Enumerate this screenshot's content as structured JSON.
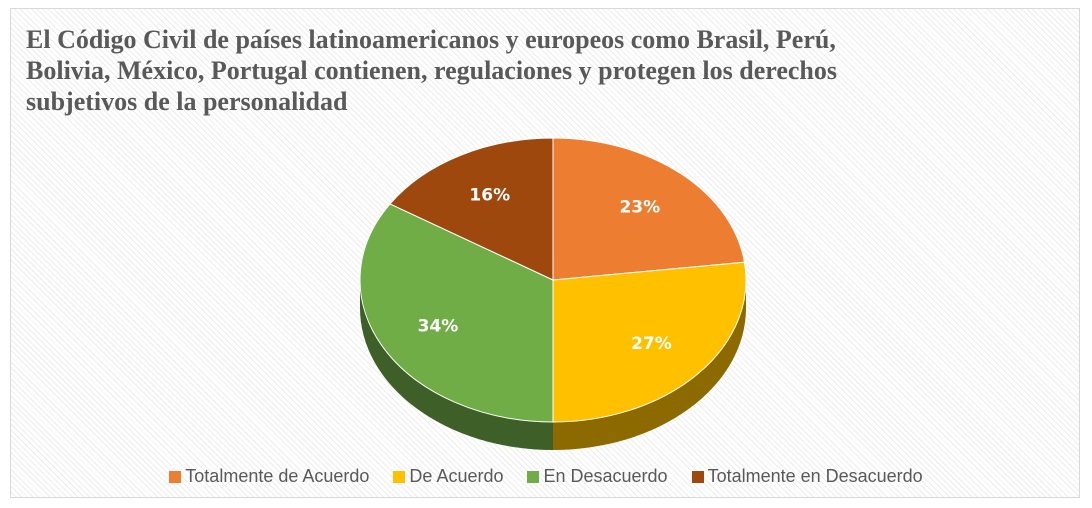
{
  "chart_data": {
    "type": "pie",
    "title": "El Código Civil de países latinoamericanos y europeos como Brasil, Perú, Bolivia, México, Portugal contienen, regulaciones y protegen los derechos subjetivos de la personalidad",
    "categories": [
      "Totalmente de Acuerdo",
      "De Acuerdo",
      "En Desacuerdo",
      "Totalmente en Desacuerdo"
    ],
    "values": [
      23,
      27,
      34,
      16
    ],
    "value_labels": [
      "23%",
      "27%",
      "34%",
      "16%"
    ],
    "colors": [
      "#ed7d31",
      "#ffc000",
      "#70ad47",
      "#9e480e"
    ],
    "legend": "bottom"
  }
}
